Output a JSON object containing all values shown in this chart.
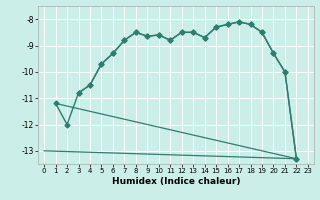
{
  "xlabel": "Humidex (Indice chaleur)",
  "background_color": "#cceee8",
  "grid_color": "#ffffff",
  "line_color": "#2e7d6e",
  "xlim": [
    -0.5,
    23.5
  ],
  "ylim": [
    -13.5,
    -7.5
  ],
  "yticks": [
    -13,
    -12,
    -11,
    -10,
    -9,
    -8
  ],
  "xticks": [
    0,
    1,
    2,
    3,
    4,
    5,
    6,
    7,
    8,
    9,
    10,
    11,
    12,
    13,
    14,
    15,
    16,
    17,
    18,
    19,
    20,
    21,
    22,
    23
  ],
  "series": [
    {
      "x": [
        1,
        2,
        3,
        4,
        5,
        6,
        7,
        8,
        9,
        10,
        11,
        12,
        13,
        14,
        15,
        16,
        17,
        18,
        19,
        20,
        21,
        22
      ],
      "y": [
        -11.2,
        -12.0,
        -10.8,
        -10.5,
        -9.7,
        -9.3,
        -8.8,
        -8.5,
        -8.65,
        -8.6,
        -8.8,
        -8.5,
        -8.5,
        -8.7,
        -8.3,
        -8.2,
        -8.1,
        -8.2,
        -8.5,
        -9.3,
        -10.0,
        -13.3
      ],
      "marker": "D",
      "markersize": 2.5,
      "linewidth": 1.0
    },
    {
      "x": [
        3,
        4,
        5,
        6,
        7,
        8,
        9,
        10,
        11,
        12,
        13,
        14,
        15,
        16,
        17,
        18,
        19,
        20,
        21,
        22
      ],
      "y": [
        -10.8,
        -10.5,
        -9.7,
        -9.3,
        -8.8,
        -8.5,
        -8.65,
        -8.6,
        -8.8,
        -8.5,
        -8.5,
        -8.7,
        -8.3,
        -8.2,
        -8.1,
        -8.2,
        -8.5,
        -9.3,
        -10.0,
        -13.3
      ],
      "marker": "D",
      "markersize": 2.5,
      "linewidth": 1.0
    },
    {
      "x": [
        0,
        22
      ],
      "y": [
        -13.0,
        -13.3
      ],
      "marker": null,
      "markersize": 0,
      "linewidth": 0.9
    },
    {
      "x": [
        1,
        22
      ],
      "y": [
        -11.2,
        -13.3
      ],
      "marker": null,
      "markersize": 0,
      "linewidth": 0.9
    }
  ]
}
